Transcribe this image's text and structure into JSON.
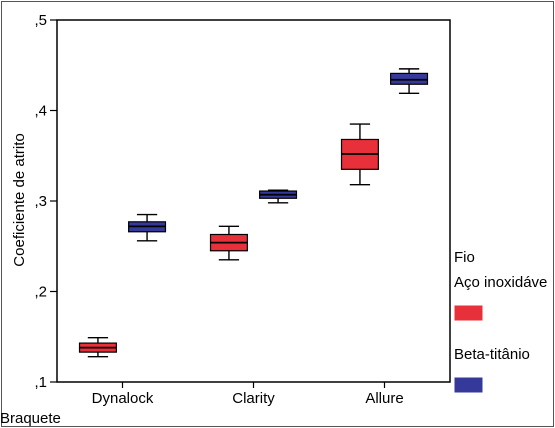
{
  "chart_data": {
    "type": "boxplot",
    "xlabel": "Braquete",
    "ylabel": "Coeficiente de atrito",
    "ylim": [
      0.1,
      0.5
    ],
    "yticks": [
      {
        "value": 0.1,
        "label": ",1"
      },
      {
        "value": 0.2,
        "label": ",2"
      },
      {
        "value": 0.3,
        "label": ",3"
      },
      {
        "value": 0.4,
        "label": ",4"
      },
      {
        "value": 0.5,
        "label": ",5"
      }
    ],
    "categories": [
      "Dynalock",
      "Clarity",
      "Allure"
    ],
    "legend_title": "Fio",
    "series": [
      {
        "name": "Aço inoxidáve",
        "color": "#e8303a",
        "boxes": [
          {
            "min": 0.128,
            "q1": 0.133,
            "median": 0.138,
            "q3": 0.143,
            "max": 0.149
          },
          {
            "min": 0.235,
            "q1": 0.245,
            "median": 0.254,
            "q3": 0.263,
            "max": 0.272
          },
          {
            "min": 0.318,
            "q1": 0.335,
            "median": 0.352,
            "q3": 0.368,
            "max": 0.385
          }
        ]
      },
      {
        "name": "Beta-titânio",
        "color": "#35399a",
        "boxes": [
          {
            "min": 0.256,
            "q1": 0.266,
            "median": 0.272,
            "q3": 0.277,
            "max": 0.285
          },
          {
            "min": 0.298,
            "q1": 0.303,
            "median": 0.307,
            "q3": 0.311,
            "max": 0.312
          },
          {
            "min": 0.419,
            "q1": 0.429,
            "median": 0.434,
            "q3": 0.441,
            "max": 0.446
          }
        ]
      }
    ],
    "grid": false,
    "legend_position": "right"
  }
}
